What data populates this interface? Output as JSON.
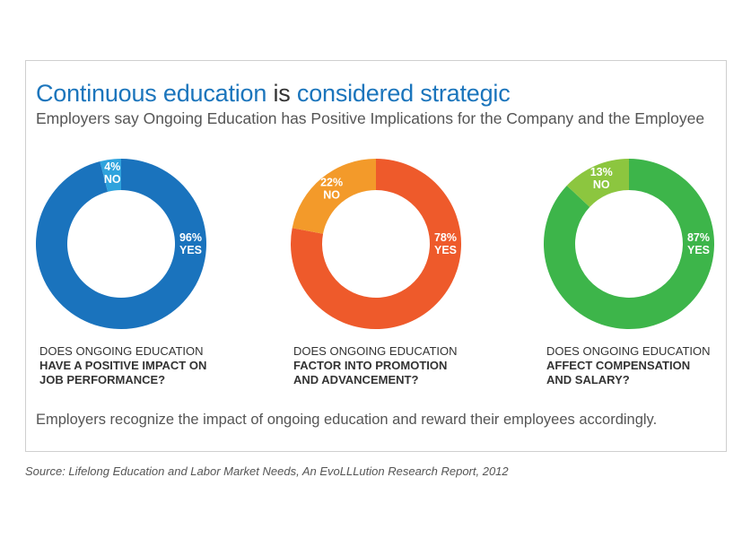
{
  "title": {
    "part1": "Continuous education",
    "part2": " is ",
    "part3": "considered strategic"
  },
  "subtitle": "Employers say Ongoing Education has Positive Implications for the Company and the Employee",
  "footer": "Employers recognize the impact of ongoing education and reward their employees accordingly.",
  "source": "Source: Lifelong Education and Labor Market Needs, An EvoLLLution Research Report, 2012",
  "colors": {
    "title_accent": "#1b75bc",
    "blue_yes": "#1a73bd",
    "blue_no": "#2fa3dd",
    "orange_yes": "#ee5a2b",
    "orange_no": "#f39a2a",
    "green_yes": "#3db54a",
    "green_no": "#8cc63f"
  },
  "chart_data": [
    {
      "type": "pie",
      "donut": true,
      "title": "",
      "question_line1": "DOES ONGOING EDUCATION",
      "question_line2": "HAVE A POSITIVE IMPACT ON",
      "question_line3": "JOB PERFORMANCE?",
      "slices": [
        {
          "label": "YES",
          "value_label": "96%",
          "value": 96,
          "color": "#1a73bd"
        },
        {
          "label": "NO",
          "value_label": "4%",
          "value": 4,
          "color": "#2fa3dd"
        }
      ]
    },
    {
      "type": "pie",
      "donut": true,
      "title": "",
      "question_line1": "DOES ONGOING EDUCATION",
      "question_line2": "FACTOR INTO PROMOTION",
      "question_line3": "AND ADVANCEMENT?",
      "slices": [
        {
          "label": "YES",
          "value_label": "78%",
          "value": 78,
          "color": "#ee5a2b"
        },
        {
          "label": "NO",
          "value_label": "22%",
          "value": 22,
          "color": "#f39a2a"
        }
      ]
    },
    {
      "type": "pie",
      "donut": true,
      "title": "",
      "question_line1": "DOES ONGOING EDUCATION",
      "question_line2": "AFFECT COMPENSATION",
      "question_line3": "AND SALARY?",
      "slices": [
        {
          "label": "YES",
          "value_label": "87%",
          "value": 87,
          "color": "#3db54a"
        },
        {
          "label": "NO",
          "value_label": "13%",
          "value": 13,
          "color": "#8cc63f"
        }
      ]
    }
  ]
}
